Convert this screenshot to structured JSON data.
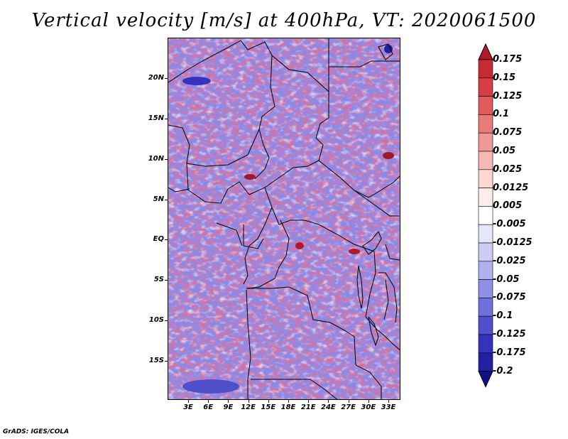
{
  "title": "Vertical velocity [m/s] at 400hPa, VT: 2020061500",
  "credit": "GrADS: IGES/COLA",
  "map": {
    "lat_labels": [
      "20N",
      "15N",
      "10N",
      "5N",
      "EQ",
      "5S",
      "10S",
      "15S"
    ],
    "lon_labels": [
      "3E",
      "6E",
      "9E",
      "12E",
      "15E",
      "18E",
      "21E",
      "24E",
      "27E",
      "30E",
      "33E"
    ]
  },
  "colorbar": {
    "levels": [
      "0.175",
      "0.15",
      "0.125",
      "0.1",
      "0.075",
      "0.05",
      "0.025",
      "0.0125",
      "0.005",
      "-0.005",
      "-0.0125",
      "-0.025",
      "-0.05",
      "-0.075",
      "-0.1",
      "-0.125",
      "-0.175",
      "-0.2"
    ],
    "colors": [
      "#b2182b",
      "#c62b35",
      "#d63f45",
      "#e05c5c",
      "#e87a78",
      "#f09a96",
      "#f6b8b4",
      "#fbd6d3",
      "#ffeceb",
      "#ffffff",
      "#e6e6fa",
      "#ccccf4",
      "#b0b0ee",
      "#9090e6",
      "#7070dc",
      "#5050cc",
      "#3333bb",
      "#2020a0",
      "#10108a"
    ]
  }
}
